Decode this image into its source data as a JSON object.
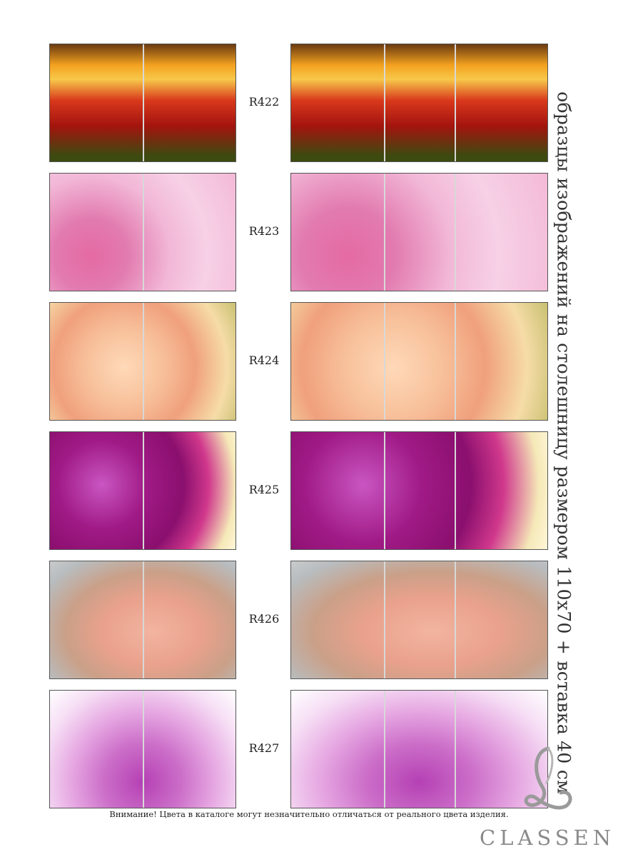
{
  "title": "образцы изображений на столешницу размером 110х70 + вставка 40 см",
  "notice": "Внимание! Цвета в каталоге могут незначительно отличаться от реального цвета изделия.",
  "brand": "CLASSEN",
  "samples": [
    {
      "code": "R422",
      "bg": "linear-gradient(to bottom,#6a3a10 0%,#f4a320 18%,#f7c84a 30%,#d9381c 48%,#a3140e 70%,#3d4a10 95%)"
    },
    {
      "code": "R423",
      "bg": "radial-gradient(circle at 22% 70%,#e56aa4 0%,#e27bb0 22%,#f2b8d7 48%,#f7d1e6 70%,#f3b9d6 100%)"
    },
    {
      "code": "R424",
      "bg": "radial-gradient(circle at 40% 55%,#ffd9b8 0%,#f7c09a 30%,#f0a07c 55%,#f6dca8 80%,#c8c070 100%)"
    },
    {
      "code": "R425",
      "bg": "radial-gradient(circle at 28% 45%,#c956c2 0%,#a01a86 30%,#8a0f6e 55%,#d0388c 72%,#f5e9b8 90%,#fff6d8 100%)"
    },
    {
      "code": "R426",
      "bg": "radial-gradient(ellipse at 55% 60%,#f2b4a0 0%,#e9a18c 35%,#caa088 60%,#b8bcbe 85%,#c9cbcc 100%)"
    },
    {
      "code": "R427",
      "bg": "radial-gradient(ellipse at 50% 78%,#b540b4 0%,#cc6fc9 30%,#e6a8e2 55%,#f6def5 78%,#ffffff 100%)"
    }
  ]
}
